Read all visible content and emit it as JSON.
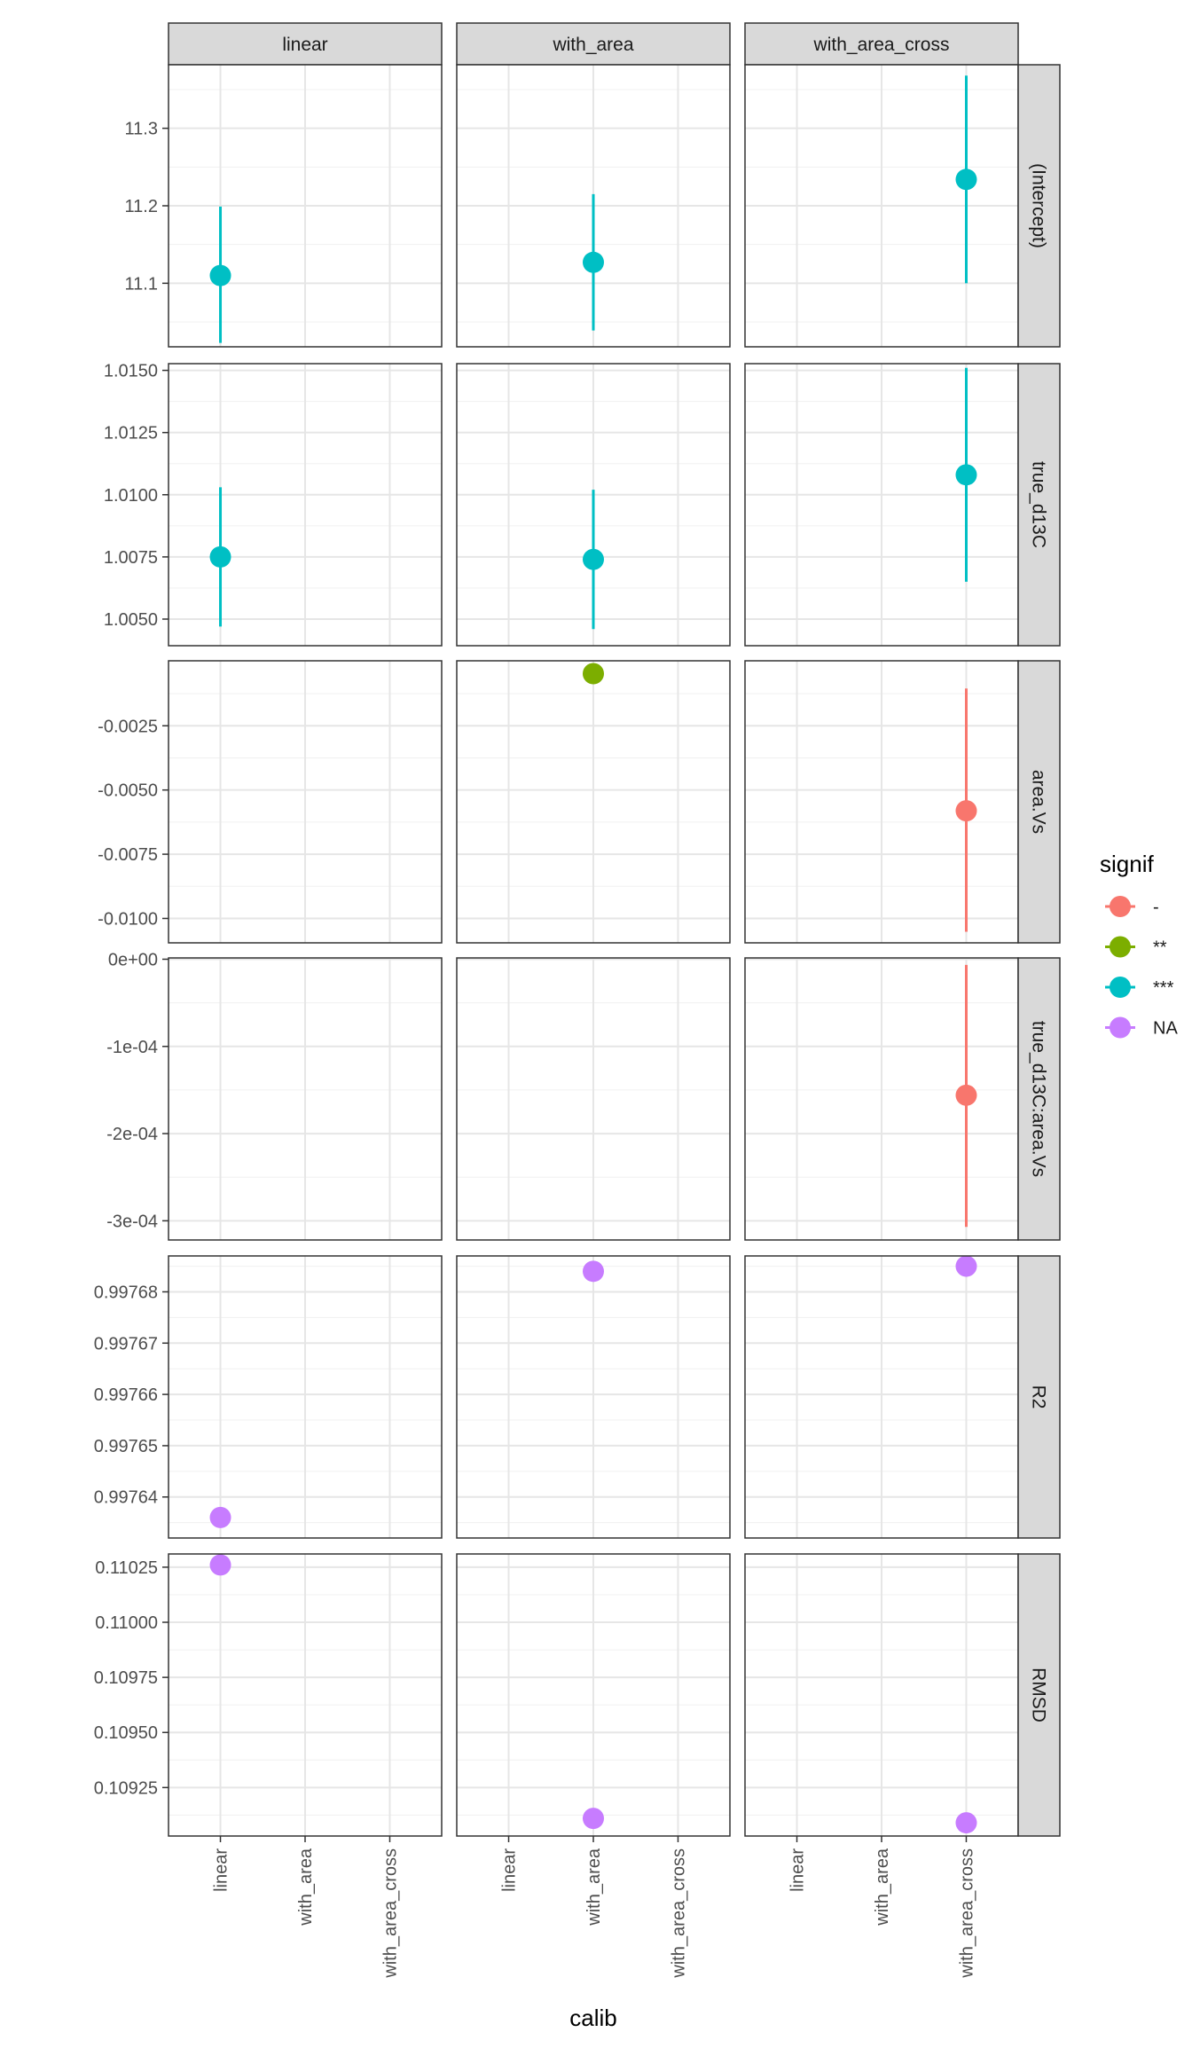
{
  "chart_data": {
    "type": "scatter",
    "subtype": "faceted-pointrange",
    "xlabel": "calib",
    "categories": [
      "linear",
      "with_area",
      "with_area_cross"
    ],
    "col_facets": [
      "linear",
      "with_area",
      "with_area_cross"
    ],
    "row_facets": [
      "(Intercept)",
      "true_d13C",
      "area.Vs",
      "true_d13C:area.Vs",
      "R2",
      "RMSD"
    ],
    "grid": true,
    "legend": {
      "title": "signif",
      "position": "right",
      "entries": [
        {
          "label": "-",
          "color": "#F8766D"
        },
        {
          "label": "**",
          "color": "#7CAE00"
        },
        {
          "label": "***",
          "color": "#00BFC4"
        },
        {
          "label": "NA",
          "color": "#C77CFF"
        }
      ]
    },
    "rows": [
      {
        "facet": "(Intercept)",
        "ylim": [
          11.018,
          11.382
        ],
        "ticks": [
          11.1,
          11.2,
          11.3
        ],
        "tick_labels": [
          "11.1",
          "11.2",
          "11.3"
        ],
        "points": [
          {
            "col": "linear",
            "x": "linear",
            "y": 11.11,
            "ymin": 11.023,
            "ymax": 11.199,
            "signif": "***"
          },
          {
            "col": "with_area",
            "x": "with_area",
            "y": 11.127,
            "ymin": 11.039,
            "ymax": 11.215,
            "signif": "***"
          },
          {
            "col": "with_area_cross",
            "x": "with_area_cross",
            "y": 11.234,
            "ymin": 11.1,
            "ymax": 11.368,
            "signif": "***"
          }
        ]
      },
      {
        "facet": "true_d13C",
        "ylim": [
          1.00393,
          1.01527
        ],
        "ticks": [
          1.005,
          1.0075,
          1.01,
          1.0125,
          1.015
        ],
        "tick_labels": [
          "1.0050",
          "1.0075",
          "1.0100",
          "1.0125",
          "1.0150"
        ],
        "points": [
          {
            "col": "linear",
            "x": "linear",
            "y": 1.0075,
            "ymin": 1.0047,
            "ymax": 1.0103,
            "signif": "***"
          },
          {
            "col": "with_area",
            "x": "with_area",
            "y": 1.0074,
            "ymin": 1.0046,
            "ymax": 1.0102,
            "signif": "***"
          },
          {
            "col": "with_area_cross",
            "x": "with_area_cross",
            "y": 1.0108,
            "ymin": 1.0065,
            "ymax": 1.0151,
            "signif": "***"
          }
        ]
      },
      {
        "facet": "area.Vs",
        "ylim": [
          -0.01095,
          3e-05
        ],
        "ticks": [
          -0.01,
          -0.0075,
          -0.005,
          -0.0025
        ],
        "tick_labels": [
          "-0.0100",
          "-0.0075",
          "-0.0050",
          "-0.0025"
        ],
        "points": [
          {
            "col": "with_area",
            "x": "with_area",
            "y": -0.00047,
            "signif": "**"
          },
          {
            "col": "with_area_cross",
            "x": "with_area_cross",
            "y": -0.00581,
            "ymin": -0.01052,
            "ymax": -0.00105,
            "signif": "-"
          }
        ]
      },
      {
        "facet": "true_d13C:area.Vs",
        "ylim": [
          -0.000322,
          1.5e-06
        ],
        "ticks": [
          -0.0003,
          -0.0002,
          -0.0001,
          0
        ],
        "tick_labels": [
          "-3e-04",
          "-2e-04",
          "-1e-04",
          "0e+00"
        ],
        "points": [
          {
            "col": "with_area_cross",
            "x": "with_area_cross",
            "y": -0.000156,
            "ymin": -0.000307,
            "ymax": -6.5e-06,
            "signif": "-"
          }
        ]
      },
      {
        "facet": "R2",
        "ylim": [
          0.997632,
          0.997687
        ],
        "ticks": [
          0.99764,
          0.99765,
          0.99766,
          0.99767,
          0.99768
        ],
        "tick_labels": [
          "0.99764",
          "0.99765",
          "0.99766",
          "0.99767",
          "0.99768"
        ],
        "points": [
          {
            "col": "linear",
            "x": "linear",
            "y": 0.997636,
            "signif": "NA"
          },
          {
            "col": "with_area",
            "x": "with_area",
            "y": 0.997684,
            "signif": "NA"
          },
          {
            "col": "with_area_cross",
            "x": "with_area_cross",
            "y": 0.997685,
            "signif": "NA"
          }
        ]
      },
      {
        "facet": "RMSD",
        "ylim": [
          0.10903,
          0.11031
        ],
        "ticks": [
          0.10925,
          0.1095,
          0.10975,
          0.11,
          0.11025
        ],
        "tick_labels": [
          "0.10925",
          "0.10950",
          "0.10975",
          "0.11000",
          "0.11025"
        ],
        "points": [
          {
            "col": "linear",
            "x": "linear",
            "y": 0.11026,
            "signif": "NA"
          },
          {
            "col": "with_area",
            "x": "with_area",
            "y": 0.10911,
            "signif": "NA"
          },
          {
            "col": "with_area_cross",
            "x": "with_area_cross",
            "y": 0.10909,
            "signif": "NA"
          }
        ]
      }
    ]
  }
}
